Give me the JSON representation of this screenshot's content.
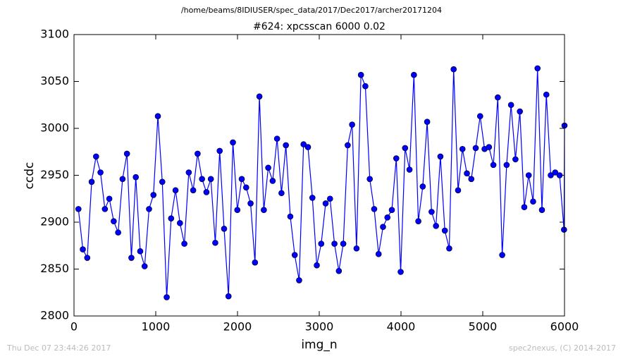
{
  "chart_data": {
    "type": "line",
    "suptitle": "/home/beams/8IDIUSER/spec_data/2017/Dec2017/archer20171204",
    "title": "#624: xpcsscan 6000 0.02",
    "xlabel": "img_n",
    "ylabel": "ccdc",
    "footer_left": "Thu Dec 07 23:44:26 2017",
    "footer_right": "spec2nexus, (C) 2014-2017",
    "color": "#0000ff",
    "x": [
      54,
      108,
      162,
      216,
      270,
      324,
      378,
      432,
      486,
      540,
      594,
      648,
      702,
      756,
      810,
      864,
      918,
      972,
      1026,
      1080,
      1134,
      1188,
      1242,
      1296,
      1350,
      1404,
      1458,
      1512,
      1566,
      1620,
      1674,
      1728,
      1782,
      1836,
      1890,
      1944,
      1998,
      2052,
      2106,
      2160,
      2214,
      2268,
      2322,
      2376,
      2430,
      2484,
      2538,
      2592,
      2646,
      2700,
      2754,
      2808,
      2862,
      2916,
      2970,
      3024,
      3078,
      3132,
      3186,
      3240,
      3294,
      3348,
      3402,
      3456,
      3510,
      3564,
      3618,
      3672,
      3726,
      3780,
      3834,
      3888,
      3942,
      3996,
      4050,
      4104,
      4158,
      4212,
      4266,
      4320,
      4374,
      4428,
      4482,
      4536,
      4590,
      4644,
      4698,
      4752,
      4806,
      4860,
      4914,
      4968,
      5022,
      5076,
      5130,
      5184,
      5238,
      5292,
      5346,
      5400,
      5454,
      5508,
      5562,
      5616,
      5670,
      5724,
      5778,
      5832,
      5886,
      5940,
      5994,
      6000
    ],
    "values": [
      2914,
      2871,
      2862,
      2943,
      2970,
      2953,
      2914,
      2925,
      2901,
      2889,
      2946,
      2973,
      2862,
      2948,
      2869,
      2853,
      2914,
      2929,
      3013,
      2943,
      2820,
      2904,
      2934,
      2899,
      2877,
      2953,
      2934,
      2973,
      2946,
      2932,
      2946,
      2878,
      2976,
      2893,
      2821,
      2985,
      2913,
      2946,
      2937,
      2920,
      2857,
      3034,
      2913,
      2958,
      2944,
      2989,
      2931,
      2982,
      2906,
      2865,
      2838,
      2983,
      2980,
      2926,
      2854,
      2877,
      2920,
      2925,
      2877,
      2848,
      2877,
      2982,
      3004,
      2872,
      3057,
      3045,
      2946,
      2914,
      2866,
      2895,
      2905,
      2913,
      2968,
      2847,
      2979,
      2956,
      3057,
      2901,
      2938,
      3007,
      2911,
      2896,
      2970,
      2891,
      2872,
      3063,
      2934,
      2978,
      2952,
      2946,
      2979,
      3013,
      2978,
      2980,
      2961,
      3033,
      2865,
      2961,
      3025,
      2967,
      3018,
      2916,
      2950,
      2922,
      3064,
      2913,
      3036,
      2950,
      2953,
      2950,
      2892,
      3003
    ],
    "xlim": [
      0,
      6000
    ],
    "xticks": [
      0,
      1000,
      2000,
      3000,
      4000,
      5000,
      6000
    ],
    "ylim": [
      2800,
      3100
    ],
    "yticks": [
      2800,
      2850,
      2900,
      2950,
      3000,
      3050,
      3100
    ]
  }
}
